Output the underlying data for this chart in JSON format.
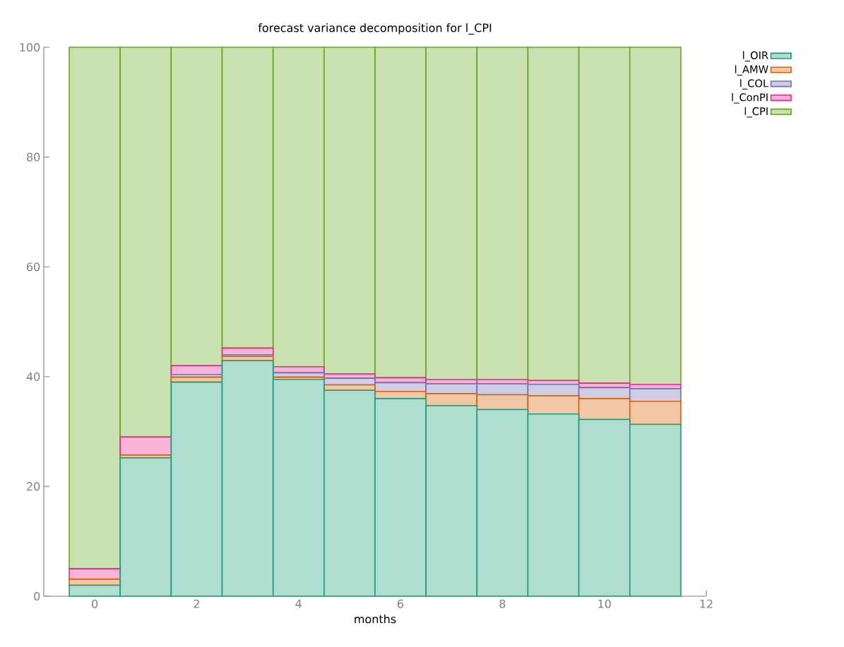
{
  "chart_data": {
    "type": "bar",
    "title": "forecast variance decomposition for l_CPI",
    "xlabel": "months",
    "x": [
      0,
      1,
      2,
      3,
      4,
      5,
      6,
      7,
      8,
      9,
      10,
      11
    ],
    "stacked": true,
    "xlim": [
      -1,
      12
    ],
    "xticks": [
      0,
      2,
      4,
      6,
      8,
      10,
      12
    ],
    "ylim": [
      0,
      100
    ],
    "yticks": [
      0,
      20,
      40,
      60,
      80,
      100
    ],
    "grid": false,
    "legend": "top right",
    "series": [
      {
        "name": "l_OIR",
        "color": "#1b9e77",
        "values": [
          2.0,
          25.2,
          39.0,
          42.9,
          39.5,
          37.5,
          36.0,
          34.7,
          34.0,
          33.2,
          32.2,
          31.3
        ]
      },
      {
        "name": "l_AMW",
        "color": "#d95f02",
        "values": [
          1.1,
          0.5,
          0.9,
          0.8,
          0.4,
          1.0,
          1.3,
          2.2,
          2.7,
          3.3,
          3.8,
          4.2
        ]
      },
      {
        "name": "l_COL",
        "color": "#7570b3",
        "values": [
          0,
          0,
          0.5,
          0.3,
          0.8,
          1.2,
          1.6,
          1.8,
          2.0,
          2.1,
          2.0,
          2.3
        ]
      },
      {
        "name": "l_ConPI",
        "color": "#e7298a",
        "values": [
          1.9,
          3.3,
          1.6,
          1.2,
          1.1,
          0.8,
          0.9,
          0.8,
          0.8,
          0.7,
          0.8,
          0.8
        ]
      },
      {
        "name": "l_CPI",
        "color": "#66a61e",
        "values": [
          95.0,
          71.0,
          58.0,
          54.8,
          58.2,
          59.5,
          60.2,
          60.5,
          60.5,
          60.7,
          61.2,
          61.4
        ]
      }
    ]
  }
}
